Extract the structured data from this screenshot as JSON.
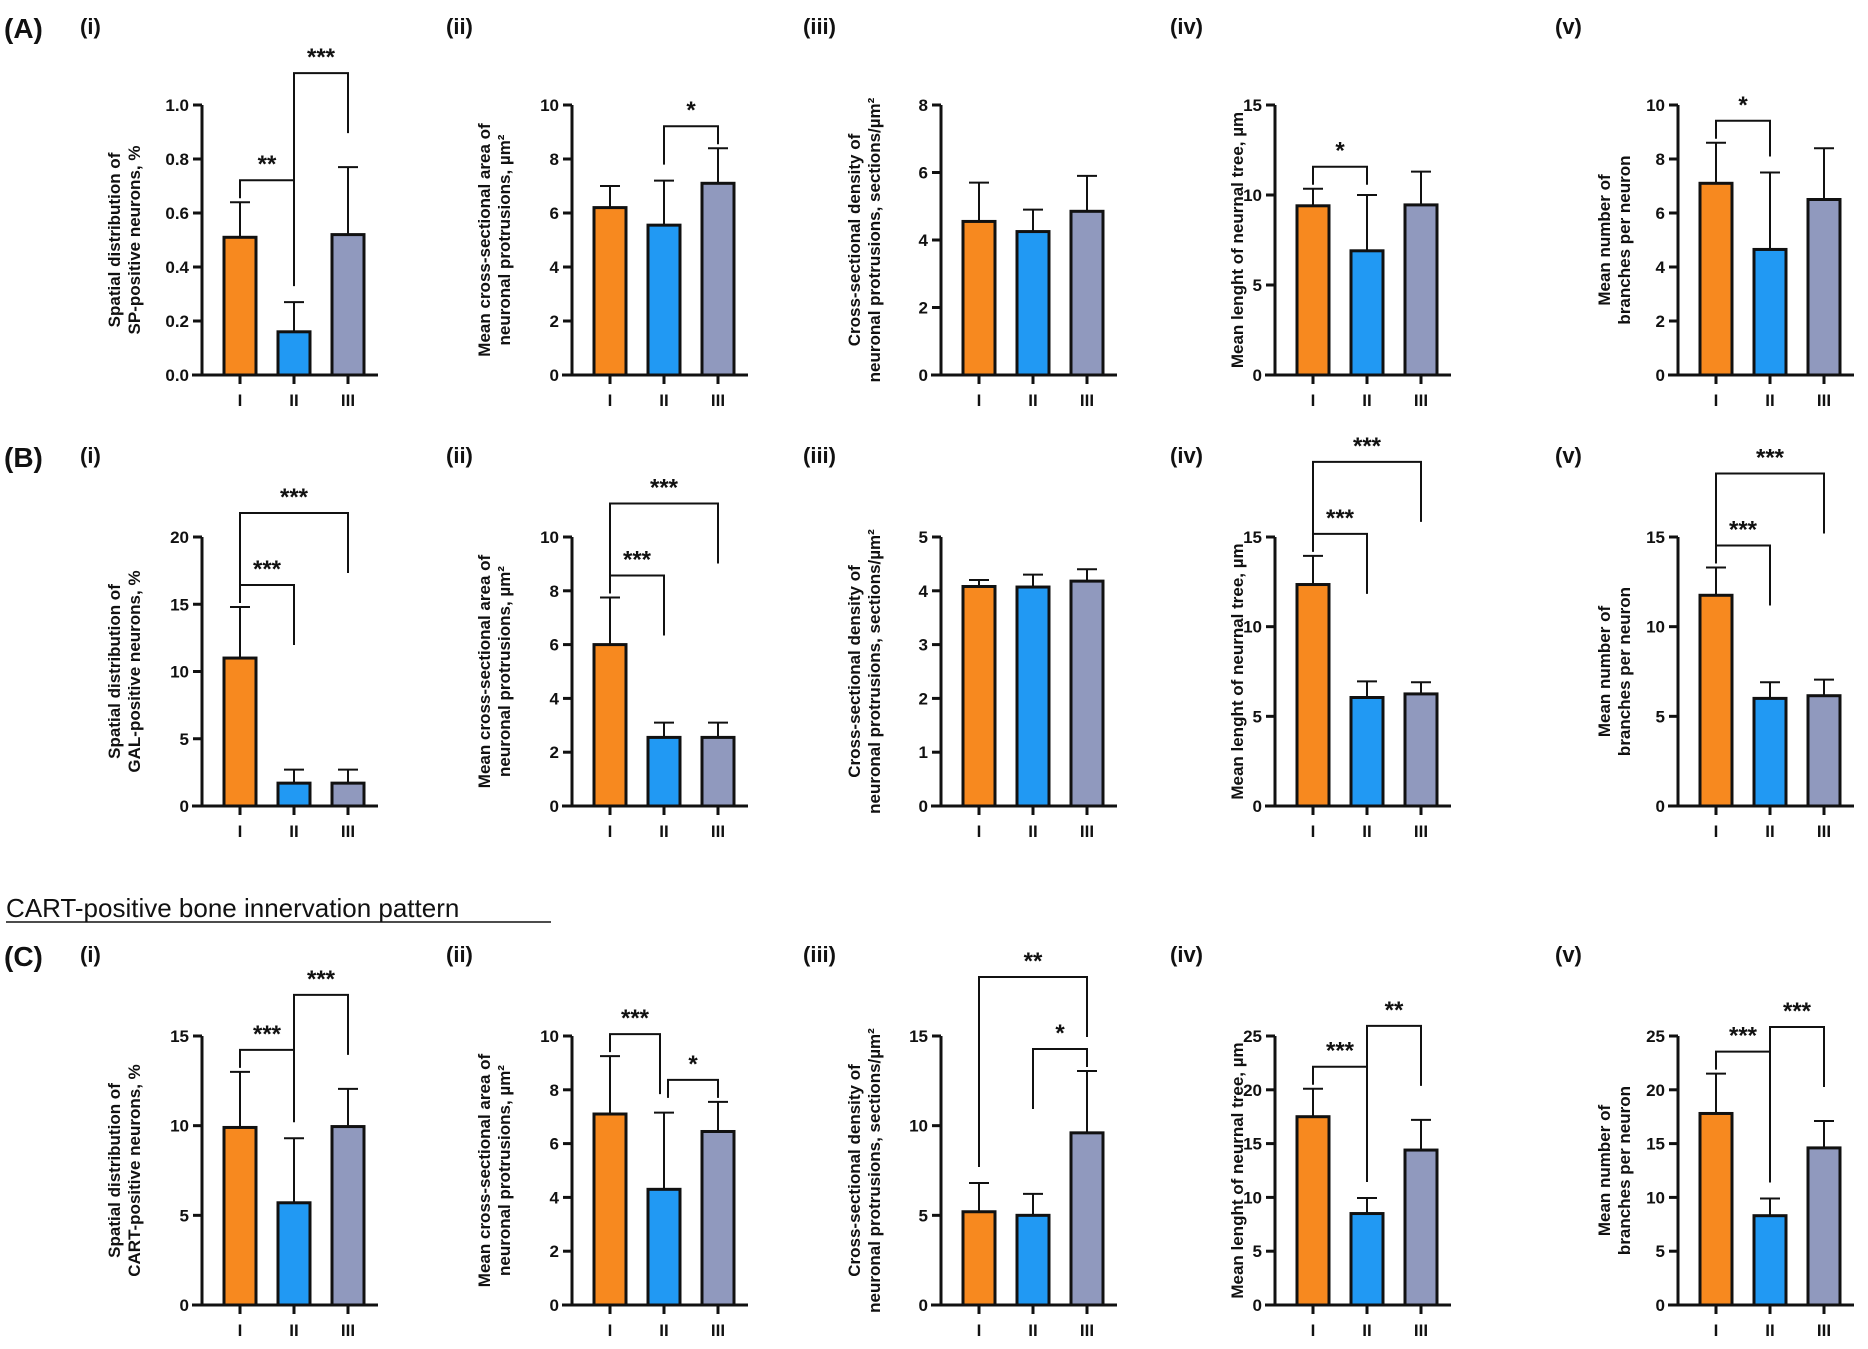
{
  "colors": {
    "I": "#F7891F",
    "II": "#2199F3",
    "III": "#9099BE",
    "stroke": "#111111"
  },
  "section_title": "CART-positive bone innervation pattern",
  "chart_data": [
    {
      "type": "bar",
      "row": "(A)",
      "panel": "(i)",
      "categories": [
        "I",
        "II",
        "III"
      ],
      "values": [
        0.51,
        0.16,
        0.52
      ],
      "errors": [
        0.64,
        0.27,
        0.77
      ],
      "ylabel": [
        "Spatial distribution of",
        "SP-positive neurons, %"
      ],
      "ylim": [
        0,
        1.0
      ],
      "yticks": [
        "0.0",
        "0.2",
        "0.4",
        "0.6",
        "0.8",
        "1.0"
      ],
      "ytick_values": [
        0,
        0.2,
        0.4,
        0.6,
        0.8,
        1.0
      ],
      "significance": [
        {
          "from": "I",
          "to": "II",
          "label": "**",
          "level": 1
        },
        {
          "from": "II",
          "to": "III",
          "label": "***",
          "level": 2
        }
      ]
    },
    {
      "type": "bar",
      "row": "(A)",
      "panel": "(ii)",
      "categories": [
        "I",
        "II",
        "III"
      ],
      "values": [
        6.2,
        5.55,
        7.1
      ],
      "errors": [
        7.0,
        7.2,
        8.4
      ],
      "ylabel": [
        "Mean cross-sectional area of",
        "neuronal protrusions, µm²"
      ],
      "ylim": [
        0,
        10
      ],
      "yticks": [
        "0",
        "2",
        "4",
        "6",
        "8",
        "10"
      ],
      "ytick_values": [
        0,
        2,
        4,
        6,
        8,
        10
      ],
      "significance": [
        {
          "from": "II",
          "to": "III",
          "label": "*",
          "level": 1
        }
      ]
    },
    {
      "type": "bar",
      "row": "(A)",
      "panel": "(iii)",
      "categories": [
        "I",
        "II",
        "III"
      ],
      "values": [
        4.55,
        4.25,
        4.85
      ],
      "errors": [
        5.7,
        4.9,
        5.9
      ],
      "ylabel": [
        "Cross-sectional density of",
        "neuronal protrusions, sections/µm²"
      ],
      "ylim": [
        0,
        8
      ],
      "yticks": [
        "0",
        "2",
        "4",
        "6",
        "8"
      ],
      "ytick_values": [
        0,
        2,
        4,
        6,
        8
      ],
      "significance": []
    },
    {
      "type": "bar",
      "row": "(A)",
      "panel": "(iv)",
      "categories": [
        "I",
        "II",
        "III"
      ],
      "values": [
        9.4,
        6.9,
        9.45
      ],
      "errors": [
        10.35,
        10.0,
        11.3
      ],
      "ylabel": [
        "Mean lenght of neurnal tree, µm"
      ],
      "ylim": [
        0,
        15
      ],
      "yticks": [
        "0",
        "5",
        "10",
        "15"
      ],
      "ytick_values": [
        0,
        5,
        10,
        15
      ],
      "significance": [
        {
          "from": "I",
          "to": "II",
          "label": "*",
          "level": 1
        }
      ]
    },
    {
      "type": "bar",
      "row": "(A)",
      "panel": "(v)",
      "categories": [
        "I",
        "II",
        "III"
      ],
      "values": [
        7.1,
        4.65,
        6.5
      ],
      "errors": [
        8.6,
        7.5,
        8.4
      ],
      "ylabel": [
        "Mean number of",
        "branches per neuron"
      ],
      "ylim": [
        0,
        10
      ],
      "yticks": [
        "0",
        "2",
        "4",
        "6",
        "8",
        "10"
      ],
      "ytick_values": [
        0,
        2,
        4,
        6,
        8,
        10
      ],
      "significance": [
        {
          "from": "I",
          "to": "II",
          "label": "*",
          "level": 1
        }
      ]
    },
    {
      "type": "bar",
      "row": "(B)",
      "panel": "(i)",
      "categories": [
        "I",
        "II",
        "III"
      ],
      "values": [
        11.0,
        1.7,
        1.7
      ],
      "errors": [
        14.8,
        2.7,
        2.7
      ],
      "ylabel": [
        "Spatial distribution of",
        "GAL-positive neurons, %"
      ],
      "ylim": [
        0,
        20
      ],
      "yticks": [
        "0",
        "5",
        "10",
        "15",
        "20"
      ],
      "ytick_values": [
        0,
        5,
        10,
        15,
        20
      ],
      "significance": [
        {
          "from": "I",
          "to": "II",
          "label": "***",
          "level": 1
        },
        {
          "from": "I",
          "to": "III",
          "label": "***",
          "level": 2
        }
      ]
    },
    {
      "type": "bar",
      "row": "(B)",
      "panel": "(ii)",
      "categories": [
        "I",
        "II",
        "III"
      ],
      "values": [
        6.0,
        2.55,
        2.55
      ],
      "errors": [
        7.75,
        3.1,
        3.1
      ],
      "ylabel": [
        "Mean cross-sectional area of",
        "neuronal protrusions, µm²"
      ],
      "ylim": [
        0,
        10
      ],
      "yticks": [
        "0",
        "2",
        "4",
        "6",
        "8",
        "10"
      ],
      "ytick_values": [
        0,
        2,
        4,
        6,
        8,
        10
      ],
      "significance": [
        {
          "from": "I",
          "to": "II",
          "label": "***",
          "level": 1
        },
        {
          "from": "I",
          "to": "III",
          "label": "***",
          "level": 2
        }
      ]
    },
    {
      "type": "bar",
      "row": "(B)",
      "panel": "(iii)",
      "categories": [
        "I",
        "II",
        "III"
      ],
      "values": [
        4.08,
        4.07,
        4.18
      ],
      "errors": [
        4.2,
        4.3,
        4.4
      ],
      "ylabel": [
        "Cross-sectional density of",
        "neuronal protrusions, sections/µm²"
      ],
      "ylim": [
        0,
        5
      ],
      "yticks": [
        "0",
        "1",
        "2",
        "3",
        "4",
        "5"
      ],
      "ytick_values": [
        0,
        1,
        2,
        3,
        4,
        5
      ],
      "significance": []
    },
    {
      "type": "bar",
      "row": "(B)",
      "panel": "(iv)",
      "categories": [
        "I",
        "II",
        "III"
      ],
      "values": [
        12.35,
        6.05,
        6.25
      ],
      "errors": [
        13.95,
        6.95,
        6.9
      ],
      "ylabel": [
        "Mean lenght of neurnal tree, µm"
      ],
      "ylim": [
        0,
        15
      ],
      "yticks": [
        "0",
        "5",
        "10",
        "15"
      ],
      "ytick_values": [
        0,
        5,
        10,
        15
      ],
      "significance": [
        {
          "from": "I",
          "to": "II",
          "label": "***",
          "level": 1
        },
        {
          "from": "I",
          "to": "III",
          "label": "***",
          "level": 2
        }
      ]
    },
    {
      "type": "bar",
      "row": "(B)",
      "panel": "(v)",
      "categories": [
        "I",
        "II",
        "III"
      ],
      "values": [
        11.75,
        6.0,
        6.15
      ],
      "errors": [
        13.3,
        6.9,
        7.05
      ],
      "ylabel": [
        "Mean number of",
        "branches per neuron"
      ],
      "ylim": [
        0,
        15
      ],
      "yticks": [
        "0",
        "5",
        "10",
        "15"
      ],
      "ytick_values": [
        0,
        5,
        10,
        15
      ],
      "significance": [
        {
          "from": "I",
          "to": "II",
          "label": "***",
          "level": 1
        },
        {
          "from": "I",
          "to": "III",
          "label": "***",
          "level": 2
        }
      ]
    },
    {
      "type": "bar",
      "row": "(C)",
      "panel": "(i)",
      "categories": [
        "I",
        "II",
        "III"
      ],
      "values": [
        9.9,
        5.7,
        9.95
      ],
      "errors": [
        13.0,
        9.3,
        12.05
      ],
      "ylabel": [
        "Spatial distribution of",
        "CART-positive neurons, %"
      ],
      "ylim": [
        0,
        15
      ],
      "yticks": [
        "0",
        "5",
        "10",
        "15"
      ],
      "ytick_values": [
        0,
        5,
        10,
        15
      ],
      "significance": [
        {
          "from": "I",
          "to": "II",
          "label": "***",
          "level": 1
        },
        {
          "from": "II",
          "to": "III",
          "label": "***",
          "level": 2
        }
      ]
    },
    {
      "type": "bar",
      "row": "(C)",
      "panel": "(ii)",
      "categories": [
        "I",
        "II",
        "III"
      ],
      "values": [
        7.1,
        4.3,
        6.45
      ],
      "errors": [
        9.25,
        7.15,
        7.55
      ],
      "ylabel": [
        "Mean cross-sectional area of",
        "neuronal protrusions, µm²"
      ],
      "ylim": [
        0,
        10
      ],
      "yticks": [
        "0",
        "2",
        "4",
        "6",
        "8",
        "10"
      ],
      "ytick_values": [
        0,
        2,
        4,
        6,
        8,
        10
      ],
      "significance": [
        {
          "from": "I",
          "to": "II",
          "label": "***",
          "level": 1
        },
        {
          "from": "II",
          "to": "III",
          "label": "*",
          "level": 1
        }
      ]
    },
    {
      "type": "bar",
      "row": "(C)",
      "panel": "(iii)",
      "categories": [
        "I",
        "II",
        "III"
      ],
      "values": [
        5.2,
        5.0,
        9.6
      ],
      "errors": [
        6.8,
        6.2,
        13.05
      ],
      "ylabel": [
        "Cross-sectional density of",
        "neuronal protrusions, sections/µm²"
      ],
      "ylim": [
        0,
        15
      ],
      "yticks": [
        "0",
        "5",
        "10",
        "15"
      ],
      "ytick_values": [
        0,
        5,
        10,
        15
      ],
      "significance": [
        {
          "from": "II",
          "to": "III",
          "label": "*",
          "level": 1
        },
        {
          "from": "I",
          "to": "III",
          "label": "**",
          "level": 2
        }
      ]
    },
    {
      "type": "bar",
      "row": "(C)",
      "panel": "(iv)",
      "categories": [
        "I",
        "II",
        "III"
      ],
      "values": [
        17.5,
        8.5,
        14.4
      ],
      "errors": [
        20.1,
        9.95,
        17.2
      ],
      "ylabel": [
        "Mean lenght of neurnal tree, µm"
      ],
      "ylim": [
        0,
        25
      ],
      "yticks": [
        "0",
        "5",
        "10",
        "15",
        "20",
        "25"
      ],
      "ytick_values": [
        0,
        5,
        10,
        15,
        20,
        25
      ],
      "significance": [
        {
          "from": "I",
          "to": "II",
          "label": "***",
          "level": 1
        },
        {
          "from": "II",
          "to": "III",
          "label": "**",
          "level": 2
        }
      ]
    },
    {
      "type": "bar",
      "row": "(C)",
      "panel": "(v)",
      "categories": [
        "I",
        "II",
        "III"
      ],
      "values": [
        17.8,
        8.3,
        14.6
      ],
      "errors": [
        21.5,
        9.9,
        17.1
      ],
      "ylabel": [
        "Mean number of",
        "branches per neuron"
      ],
      "ylim": [
        0,
        25
      ],
      "yticks": [
        "0",
        "5",
        "10",
        "15",
        "20",
        "25"
      ],
      "ytick_values": [
        0,
        5,
        10,
        15,
        20,
        25
      ],
      "significance": [
        {
          "from": "I",
          "to": "II",
          "label": "***",
          "level": 1
        },
        {
          "from": "II",
          "to": "III",
          "label": "***",
          "level": 2
        }
      ]
    }
  ]
}
